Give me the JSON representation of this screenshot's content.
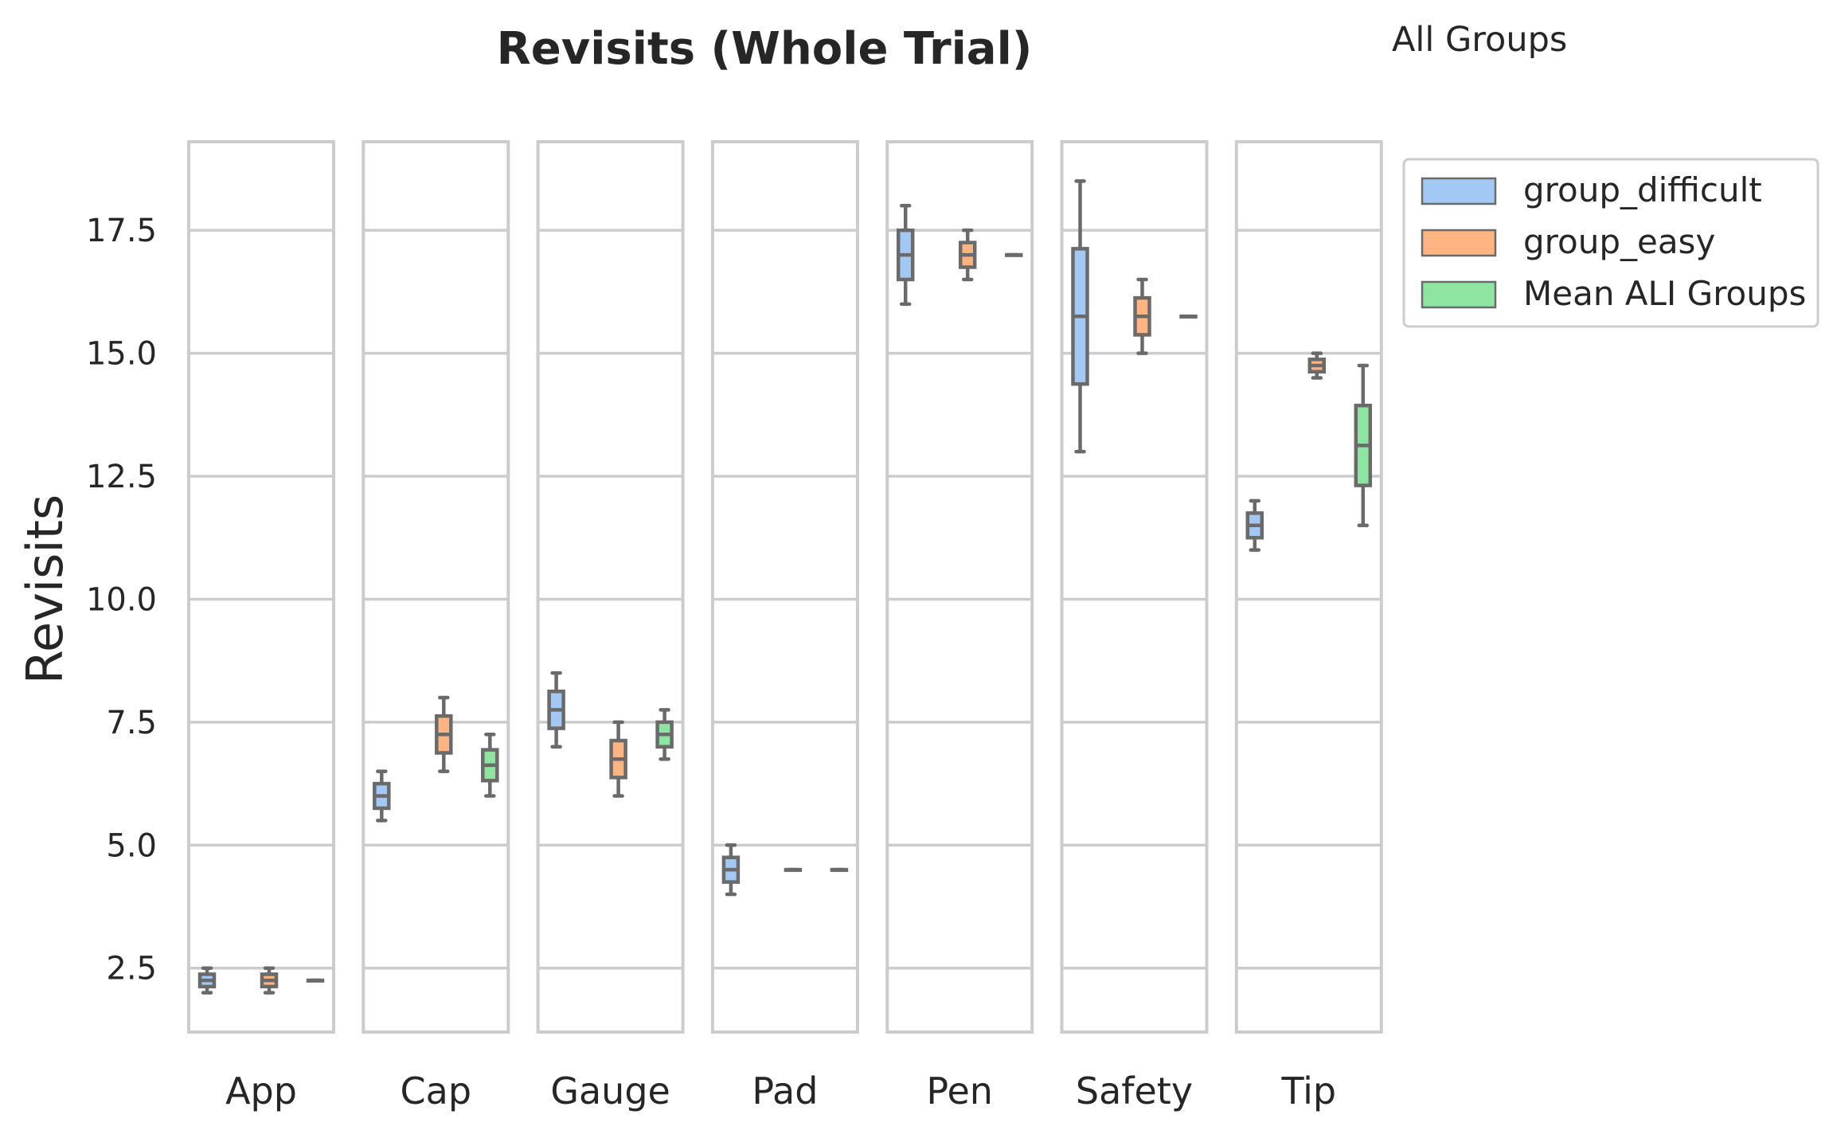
{
  "chart_data": {
    "type": "box",
    "title": "Revisits (Whole Trial)",
    "subtitle": "All Groups",
    "ylabel": "Revisits",
    "xlabel": "",
    "ylim": [
      1.2,
      19.3
    ],
    "yticks": [
      "2.5",
      "5.0",
      "7.5",
      "10.0",
      "12.5",
      "15.0",
      "17.5"
    ],
    "grid": true,
    "legend_position": "upper-right-outside",
    "categories": [
      "App",
      "Cap",
      "Gauge",
      "Pad",
      "Pen",
      "Safety",
      "Tip"
    ],
    "series": [
      {
        "name": "group_difficult",
        "color": "#a1c9f4",
        "boxes": [
          {
            "min": 2.0,
            "q1": 2.125,
            "median": 2.25,
            "q3": 2.375,
            "max": 2.5
          },
          {
            "min": 5.5,
            "q1": 5.75,
            "median": 6.0,
            "q3": 6.25,
            "max": 6.5
          },
          {
            "min": 7.0,
            "q1": 7.375,
            "median": 7.75,
            "q3": 8.125,
            "max": 8.5
          },
          {
            "min": 4.0,
            "q1": 4.25,
            "median": 4.5,
            "q3": 4.75,
            "max": 5.0
          },
          {
            "min": 16.0,
            "q1": 16.5,
            "median": 17.0,
            "q3": 17.5,
            "max": 18.0
          },
          {
            "min": 13.0,
            "q1": 14.375,
            "median": 15.75,
            "q3": 17.125,
            "max": 18.5
          },
          {
            "min": 11.0,
            "q1": 11.25,
            "median": 11.5,
            "q3": 11.75,
            "max": 12.0
          }
        ]
      },
      {
        "name": "group_easy",
        "color": "#ffb482",
        "boxes": [
          {
            "min": 2.0,
            "q1": 2.125,
            "median": 2.25,
            "q3": 2.375,
            "max": 2.5
          },
          {
            "min": 6.5,
            "q1": 6.875,
            "median": 7.25,
            "q3": 7.625,
            "max": 8.0
          },
          {
            "min": 6.0,
            "q1": 6.375,
            "median": 6.75,
            "q3": 7.125,
            "max": 7.5
          },
          {
            "min": 4.5,
            "q1": 4.5,
            "median": 4.5,
            "q3": 4.5,
            "max": 4.5
          },
          {
            "min": 16.5,
            "q1": 16.75,
            "median": 17.0,
            "q3": 17.25,
            "max": 17.5
          },
          {
            "min": 15.0,
            "q1": 15.375,
            "median": 15.75,
            "q3": 16.125,
            "max": 16.5
          },
          {
            "min": 14.5,
            "q1": 14.625,
            "median": 14.75,
            "q3": 14.875,
            "max": 15.0
          }
        ]
      },
      {
        "name": "Mean ALI Groups",
        "color": "#8de5a1",
        "boxes": [
          {
            "min": 2.25,
            "q1": 2.25,
            "median": 2.25,
            "q3": 2.25,
            "max": 2.25
          },
          {
            "min": 6.0,
            "q1": 6.3125,
            "median": 6.625,
            "q3": 6.9375,
            "max": 7.25
          },
          {
            "min": 6.75,
            "q1": 7.0,
            "median": 7.25,
            "q3": 7.5,
            "max": 7.75
          },
          {
            "min": 4.5,
            "q1": 4.5,
            "median": 4.5,
            "q3": 4.5,
            "max": 4.5
          },
          {
            "min": 17.0,
            "q1": 17.0,
            "median": 17.0,
            "q3": 17.0,
            "max": 17.0
          },
          {
            "min": 15.75,
            "q1": 15.75,
            "median": 15.75,
            "q3": 15.75,
            "max": 15.75
          },
          {
            "min": 11.5,
            "q1": 12.3125,
            "median": 13.125,
            "q3": 13.9375,
            "max": 14.75
          }
        ]
      }
    ]
  }
}
